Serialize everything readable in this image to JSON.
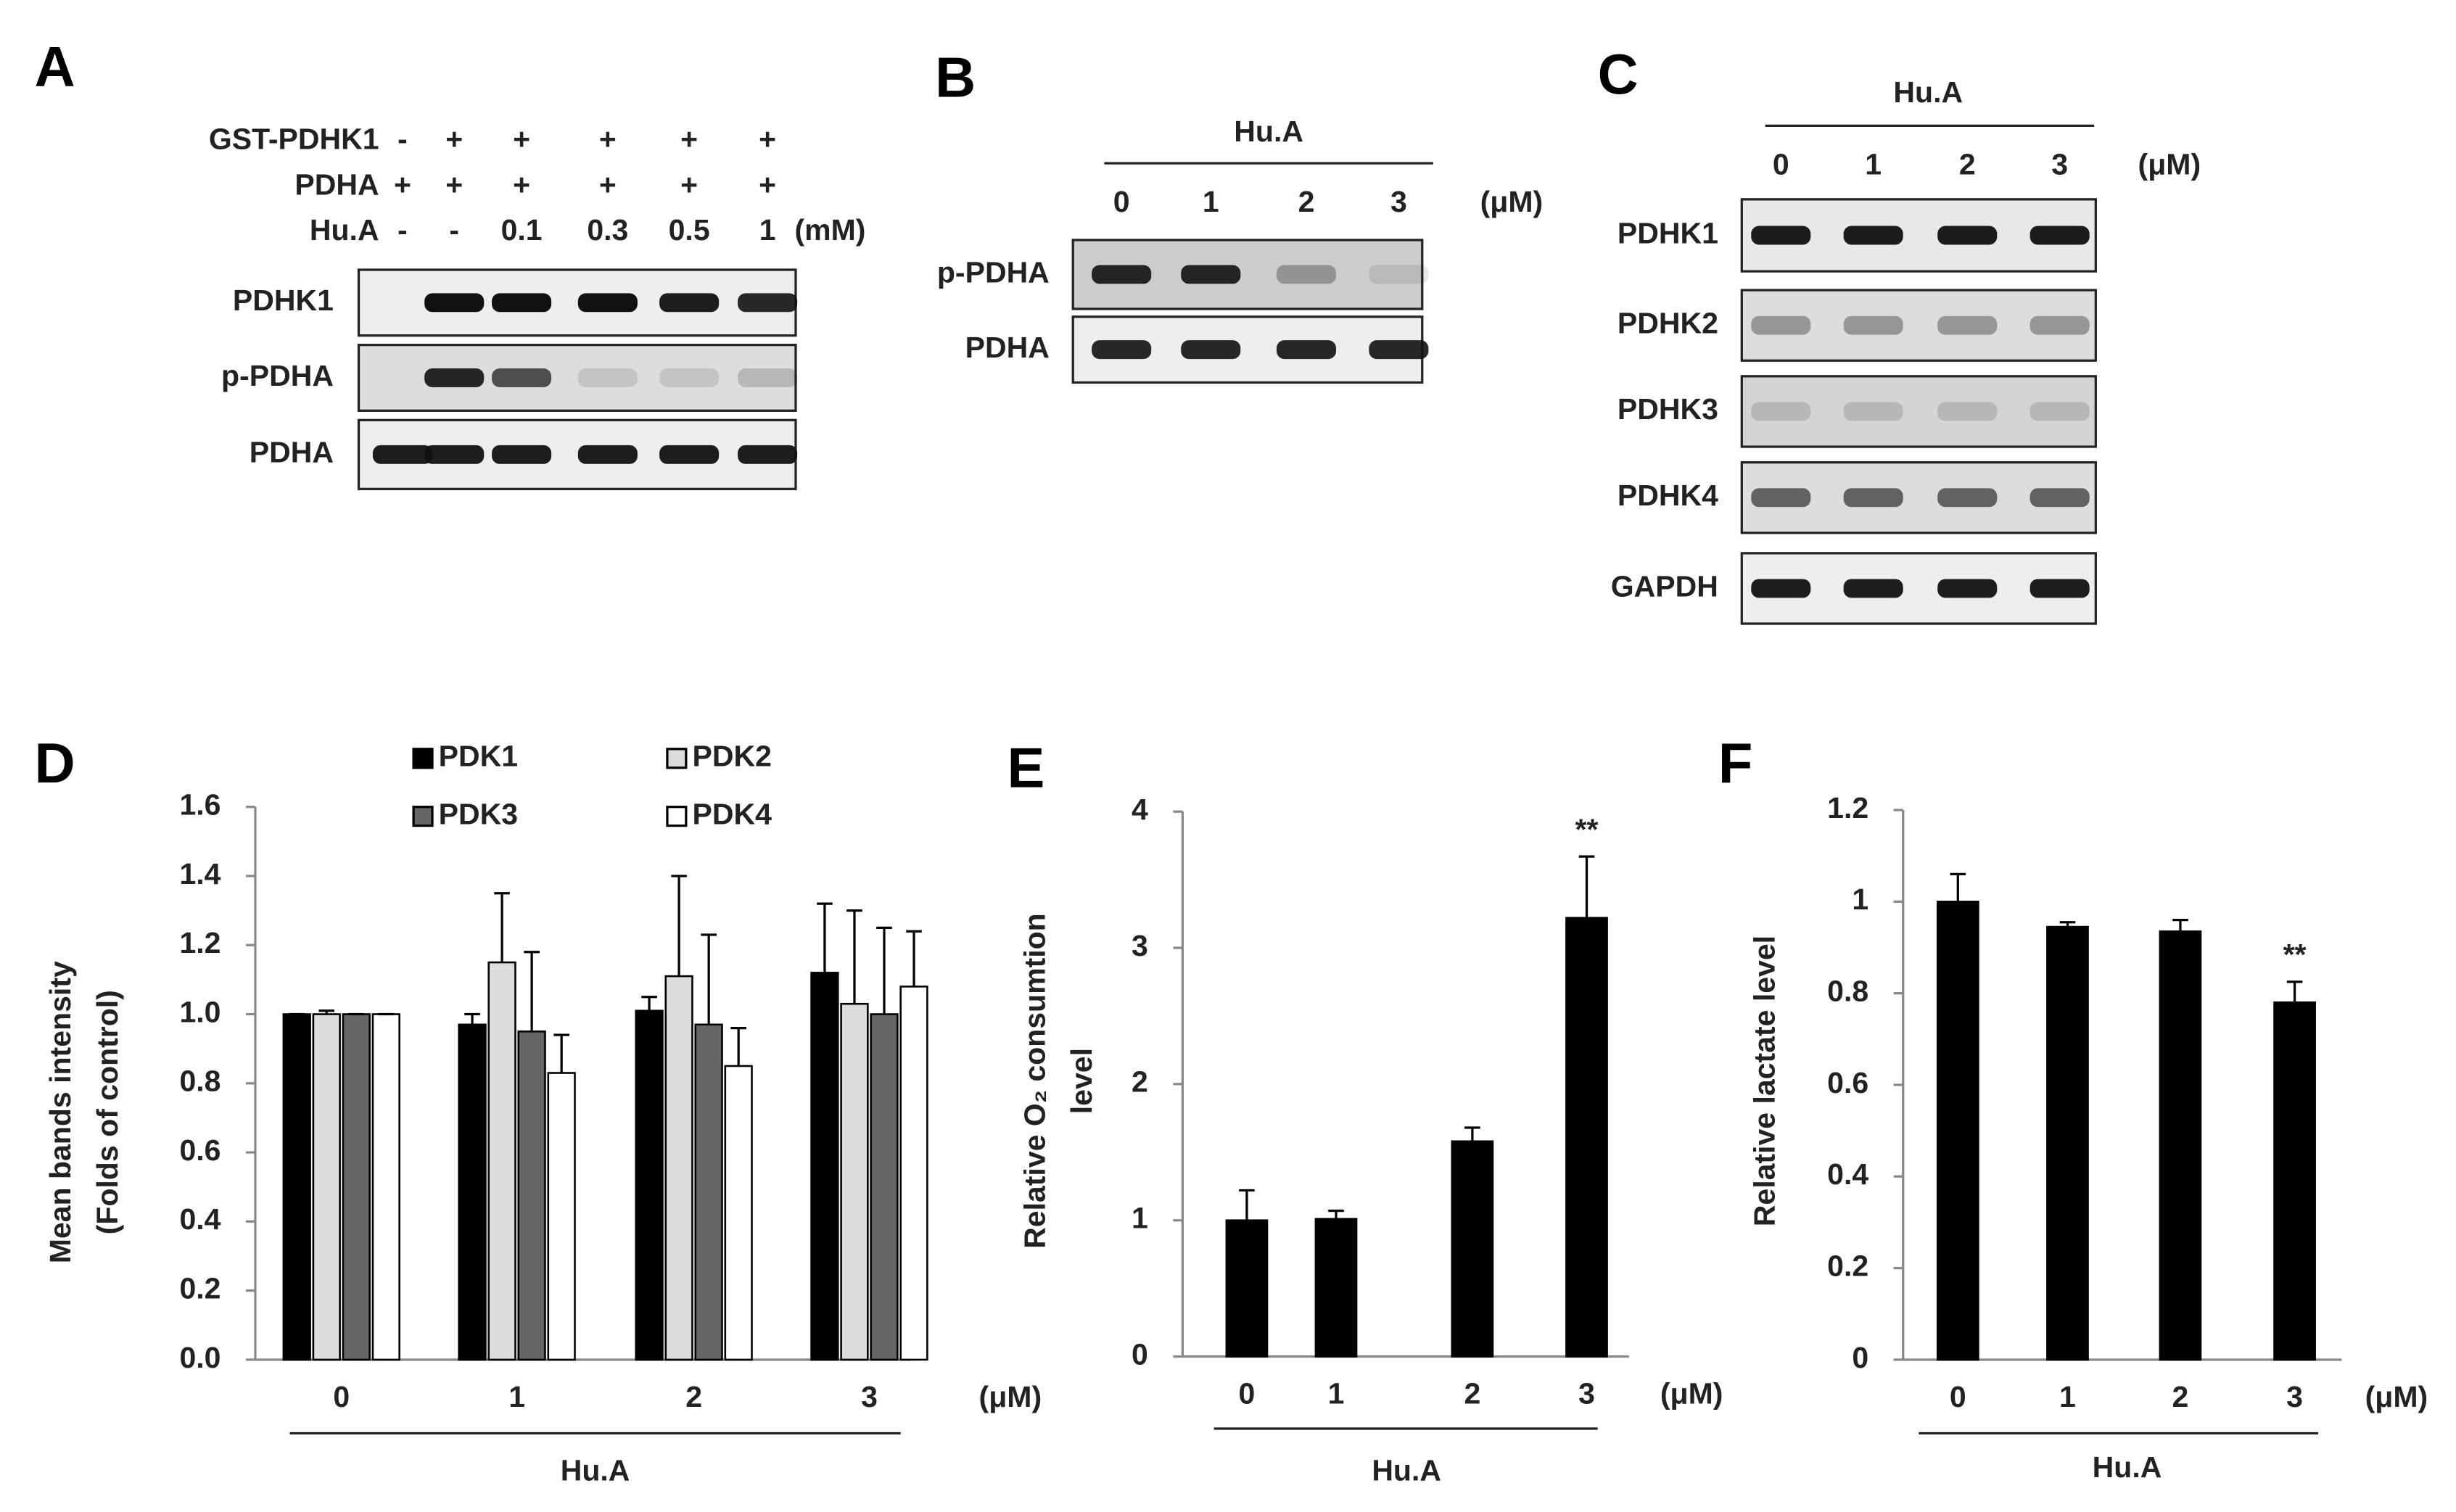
{
  "panel_a": {
    "label": "A",
    "rows": [
      {
        "name": "GST-PDHK1",
        "lanes": [
          "-",
          "+",
          "+",
          "+",
          "+",
          "+"
        ]
      },
      {
        "name": "PDHA",
        "lanes": [
          "+",
          "+",
          "+",
          "+",
          "+",
          "+"
        ]
      },
      {
        "name": "Hu.A",
        "lanes": [
          "-",
          "-",
          "0.1",
          "0.3",
          "0.5",
          "1"
        ]
      }
    ],
    "unit": "(mM)",
    "blots": [
      "PDHK1",
      "p-PDHA",
      "PDHA"
    ]
  },
  "panel_b": {
    "label": "B",
    "treatment": "Hu.A",
    "lanes": [
      "0",
      "1",
      "2",
      "3"
    ],
    "unit": "(μM)",
    "blots": [
      "p-PDHA",
      "PDHA"
    ]
  },
  "panel_c": {
    "label": "C",
    "treatment": "Hu.A",
    "lanes": [
      "0",
      "1",
      "2",
      "3"
    ],
    "unit": "(μM)",
    "blots": [
      "PDHK1",
      "PDHK2",
      "PDHK3",
      "PDHK4",
      "GAPDH"
    ]
  },
  "chart_data": [
    {
      "type": "bar",
      "panel_label": "D",
      "ylabel": [
        "Mean bands intensity",
        "(Folds of control)"
      ],
      "xlabel": "Hu.A",
      "x_unit": "(μM)",
      "categories": [
        "0",
        "1",
        "2",
        "3"
      ],
      "series": [
        {
          "name": "PDK1",
          "color": "#000000",
          "values": [
            1.0,
            0.97,
            1.01,
            1.12
          ],
          "errors": [
            0.0,
            0.03,
            0.04,
            0.2
          ]
        },
        {
          "name": "PDK2",
          "color": "#dddddd",
          "values": [
            1.0,
            1.15,
            1.11,
            1.03
          ],
          "errors": [
            0.01,
            0.2,
            0.29,
            0.27
          ]
        },
        {
          "name": "PDK3",
          "color": "#666666",
          "values": [
            1.0,
            0.95,
            0.97,
            1.0
          ],
          "errors": [
            0.0,
            0.23,
            0.26,
            0.25
          ]
        },
        {
          "name": "PDK4",
          "color": "#ffffff",
          "values": [
            1.0,
            0.83,
            0.85,
            1.08
          ],
          "errors": [
            0.0,
            0.11,
            0.11,
            0.16
          ]
        }
      ],
      "ylim": [
        0,
        1.6
      ],
      "yticks": [
        {
          "value": 0,
          "label": "0.0"
        },
        0.2,
        0.4,
        0.6,
        0.8,
        {
          "value": 1,
          "label": "1.0"
        },
        1.2,
        1.4,
        1.6
      ]
    },
    {
      "type": "bar",
      "panel_label": "E",
      "ylabel": [
        "Relative O₂ consumtion",
        "level"
      ],
      "xlabel": "Hu.A",
      "x_unit": "(μM)",
      "categories": [
        "0",
        "1",
        "2",
        "3"
      ],
      "color": "#000000",
      "values": [
        1.0,
        1.01,
        1.58,
        3.22
      ],
      "errors": [
        0.22,
        0.06,
        0.1,
        0.45
      ],
      "significance": [
        null,
        null,
        null,
        "**"
      ],
      "ylim": [
        0,
        4
      ],
      "yticks": [
        0,
        1,
        2,
        3,
        4
      ]
    },
    {
      "type": "bar",
      "panel_label": "F",
      "ylabel": [
        "Relative lactate level"
      ],
      "xlabel": "Hu.A",
      "x_unit": "(μM)",
      "categories": [
        "0",
        "1",
        "2",
        "3"
      ],
      "color": "#000000",
      "values": [
        1.0,
        0.945,
        0.935,
        0.78
      ],
      "errors": [
        0.06,
        0.01,
        0.025,
        0.045
      ],
      "significance": [
        null,
        null,
        null,
        "**"
      ],
      "ylim": [
        0,
        1.2
      ],
      "yticks": [
        0,
        0.2,
        0.4,
        0.6,
        0.8,
        1,
        1.2
      ]
    }
  ]
}
